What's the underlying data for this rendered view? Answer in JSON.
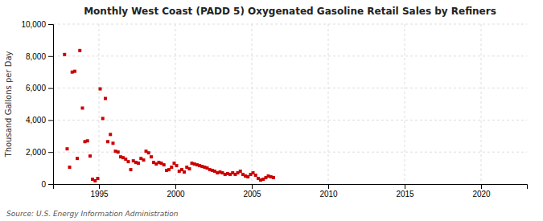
{
  "chart_data": {
    "type": "scatter",
    "title": "Monthly West Coast (PADD 5) Oxygenated Gasoline Retail Sales by Refiners",
    "ylabel": "Thousand Gallons per Day",
    "annotations": [
      "Source: U.S. Energy Information Administration"
    ],
    "color": "#cc0000",
    "marker": "square",
    "grid": true,
    "xlim": [
      1992.0,
      2023.0
    ],
    "ylim": [
      0,
      10000
    ],
    "xticks": [
      1995,
      2000,
      2005,
      2010,
      2015,
      2020
    ],
    "yticks": [
      0,
      {
        "value": 2000,
        "label": "2,000"
      },
      {
        "value": 4000,
        "label": "4,000"
      },
      {
        "value": 6000,
        "label": "6,000"
      },
      {
        "value": 8000,
        "label": "8,000"
      },
      {
        "value": 10000,
        "label": "10,000"
      }
    ],
    "x": [
      1992.75,
      1992.92,
      1993.08,
      1993.25,
      1993.42,
      1993.58,
      1993.75,
      1993.92,
      1994.08,
      1994.25,
      1994.42,
      1994.58,
      1994.75,
      1994.92,
      1995.08,
      1995.25,
      1995.42,
      1995.58,
      1995.75,
      1995.92,
      1996.08,
      1996.25,
      1996.42,
      1996.58,
      1996.75,
      1996.92,
      1997.08,
      1997.25,
      1997.42,
      1997.58,
      1997.75,
      1997.92,
      1998.08,
      1998.25,
      1998.42,
      1998.58,
      1998.75,
      1998.92,
      1999.08,
      1999.25,
      1999.42,
      1999.58,
      1999.75,
      1999.92,
      2000.08,
      2000.25,
      2000.42,
      2000.58,
      2000.75,
      2000.92,
      2001.08,
      2001.25,
      2001.42,
      2001.58,
      2001.75,
      2001.92,
      2002.08,
      2002.25,
      2002.42,
      2002.58,
      2002.75,
      2002.92,
      2003.08,
      2003.25,
      2003.42,
      2003.58,
      2003.75,
      2003.92,
      2004.08,
      2004.25,
      2004.42,
      2004.58,
      2004.75,
      2004.92,
      2005.08,
      2005.25,
      2005.42,
      2005.58,
      2005.75,
      2005.92,
      2006.08,
      2006.25,
      2006.42
    ],
    "values": [
      8100,
      2200,
      1050,
      7000,
      7050,
      1600,
      8350,
      4750,
      2650,
      2700,
      1750,
      300,
      200,
      350,
      5950,
      4100,
      5350,
      2650,
      3100,
      2550,
      2050,
      2000,
      1700,
      1650,
      1550,
      1400,
      900,
      1450,
      1350,
      1300,
      1600,
      1500,
      2050,
      1950,
      1700,
      1350,
      1250,
      1350,
      1300,
      1200,
      850,
      900,
      1050,
      1300,
      1150,
      800,
      900,
      750,
      1050,
      950,
      1300,
      1250,
      1200,
      1150,
      1100,
      1050,
      1000,
      900,
      850,
      800,
      700,
      750,
      700,
      600,
      650,
      600,
      700,
      600,
      700,
      800,
      600,
      500,
      450,
      600,
      700,
      550,
      350,
      250,
      300,
      400,
      500,
      450,
      400
    ]
  }
}
